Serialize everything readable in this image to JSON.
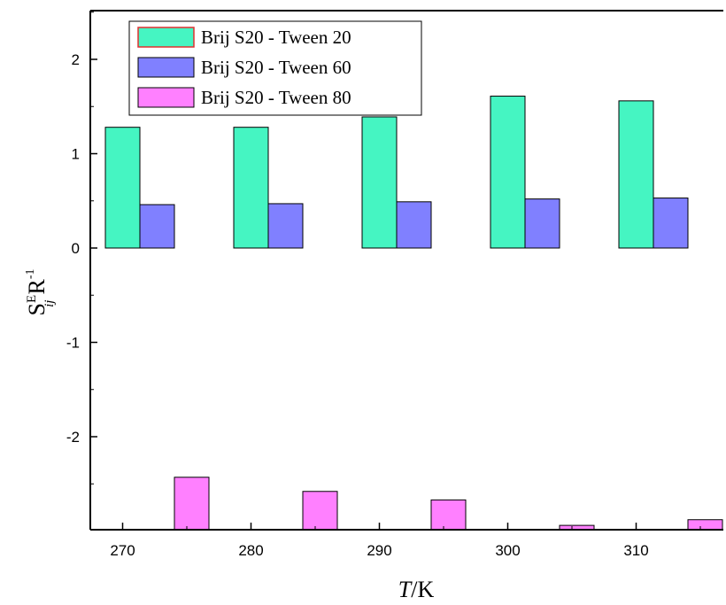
{
  "chart_data": {
    "type": "bar",
    "categories": [
      "270",
      "280",
      "290",
      "300",
      "310"
    ],
    "series": [
      {
        "name": "Brij S20 - Tween 20",
        "color": "#45F5C2",
        "values": [
          1.28,
          1.28,
          1.39,
          1.61,
          1.56
        ]
      },
      {
        "name": "Brij S20 - Tween 60",
        "color": "#8080FF",
        "values": [
          0.46,
          0.47,
          0.49,
          0.52,
          0.53
        ]
      },
      {
        "name": "Brij S20 - Tween 80",
        "color": "#FF80FF",
        "values": [
          -2.43,
          -2.58,
          -2.67,
          -2.94,
          -2.88
        ]
      }
    ],
    "ylim": [
      -2.97,
      2.45
    ],
    "yticks": [
      "2",
      "1",
      "0",
      "-1",
      "-2"
    ],
    "ytick_values": [
      2,
      1,
      0,
      -1,
      -2
    ],
    "xlabel": {
      "italic": "T",
      "rest": "/K"
    },
    "ylabel": {
      "S": "S",
      "sup": "E",
      "sub": "ij",
      "R": "R",
      "rsup": "-1"
    },
    "legend_position": "top-left",
    "grid": false
  }
}
